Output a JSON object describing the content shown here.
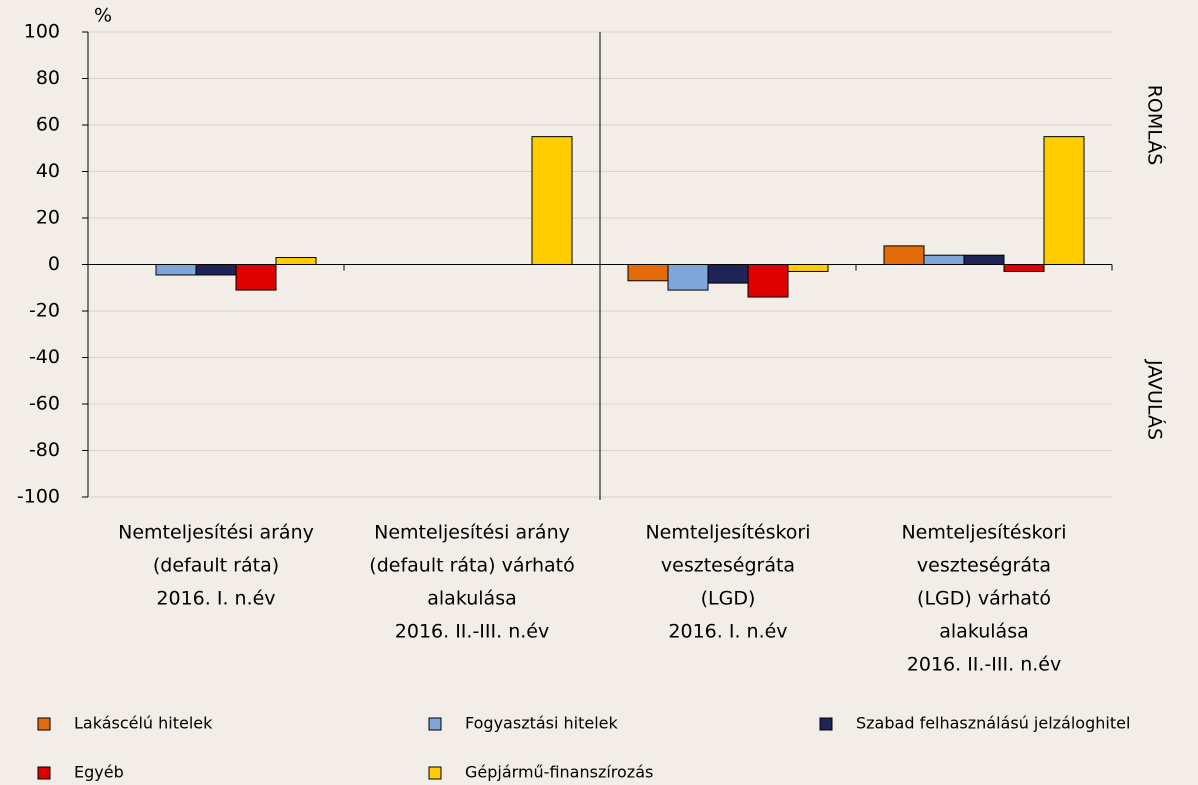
{
  "chart_data": {
    "type": "bar",
    "y_label": "%",
    "annotations": [
      "ROMLÁS",
      "JAVULÁS"
    ],
    "categories": [
      [
        "Nemteljesítési arány",
        "(default ráta)",
        "2016. I. n.év"
      ],
      [
        "Nemteljesítési arány",
        "(default ráta) várható",
        "alakulása",
        "2016. II.-III. n.év"
      ],
      [
        "Nemteljesítéskori",
        "veszteségráta",
        "(LGD)",
        "2016. I. n.év"
      ],
      [
        "Nemteljesítéskori",
        "veszteségráta",
        "(LGD) várható",
        "alakulása",
        "2016. II.-III. n.év"
      ]
    ],
    "series": [
      {
        "name": "Lakáscélú hitelek",
        "color": "#e36c09",
        "values": [
          0,
          0,
          -7,
          8
        ]
      },
      {
        "name": "Fogyasztási hitelek",
        "color": "#7ea6d8",
        "values": [
          -4.5,
          0,
          -11,
          4
        ]
      },
      {
        "name": "Szabad felhasználású jelzáloghitel",
        "color": "#1f2456",
        "values": [
          -4.5,
          0,
          -8,
          4
        ]
      },
      {
        "name": "Egyéb",
        "color": "#e00000",
        "values": [
          -11,
          0,
          -14,
          -3
        ]
      },
      {
        "name": "Gépjármű-finanszírozás",
        "color": "#ffcc00",
        "values": [
          3,
          55,
          -3,
          55
        ]
      }
    ],
    "ylim": [
      -100,
      100
    ],
    "yticks": [
      -100,
      -80,
      -60,
      -40,
      -20,
      0,
      20,
      40,
      60,
      80,
      100
    ],
    "grid": true
  }
}
